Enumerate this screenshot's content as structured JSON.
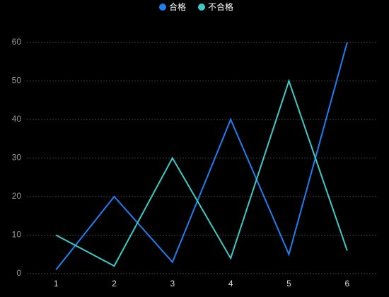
{
  "chart_data": {
    "type": "line",
    "categories": [
      "1",
      "2",
      "3",
      "4",
      "5",
      "6"
    ],
    "series": [
      {
        "name": "合格",
        "color": "#1f7ff0",
        "values": [
          1,
          20,
          3,
          40,
          5,
          60
        ]
      },
      {
        "name": "不合格",
        "color": "#3ccbc6",
        "values": [
          10,
          2,
          30,
          4,
          50,
          6
        ]
      }
    ],
    "ylim": [
      0,
      60
    ],
    "yticks": [
      0,
      10,
      20,
      30,
      40,
      50,
      60
    ],
    "grid": true,
    "legend": "top"
  }
}
